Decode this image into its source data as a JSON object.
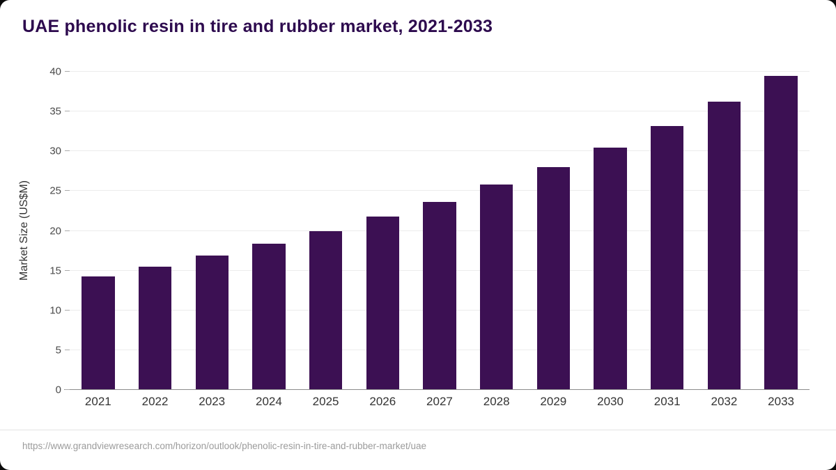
{
  "page": {
    "title": "UAE phenolic resin in tire and rubber market, 2021-2033",
    "source_url": "https://www.grandviewresearch.com/horizon/outlook/phenolic-resin-in-tire-and-rubber-market/uae"
  },
  "colors": {
    "bar": "#3c1053",
    "title": "#2d0a4e",
    "gridline": "#ececec",
    "tick_label": "#4a4a4a",
    "source_text": "#9b9b9b",
    "background": "#ffffff"
  },
  "chart_data": {
    "type": "bar",
    "title": "UAE phenolic resin in tire and rubber market, 2021-2033",
    "categories": [
      "2021",
      "2022",
      "2023",
      "2024",
      "2025",
      "2026",
      "2027",
      "2028",
      "2029",
      "2030",
      "2031",
      "2032",
      "2033"
    ],
    "values": [
      14.3,
      15.5,
      16.9,
      18.4,
      20.0,
      21.8,
      23.6,
      25.8,
      28.0,
      30.5,
      33.2,
      36.2,
      39.5
    ],
    "xlabel": "",
    "ylabel": "Market Size (US$M)",
    "ylim": [
      0,
      40
    ],
    "yticks": [
      0,
      5,
      10,
      15,
      20,
      25,
      30,
      35,
      40
    ],
    "grid": true,
    "legend": "none"
  }
}
